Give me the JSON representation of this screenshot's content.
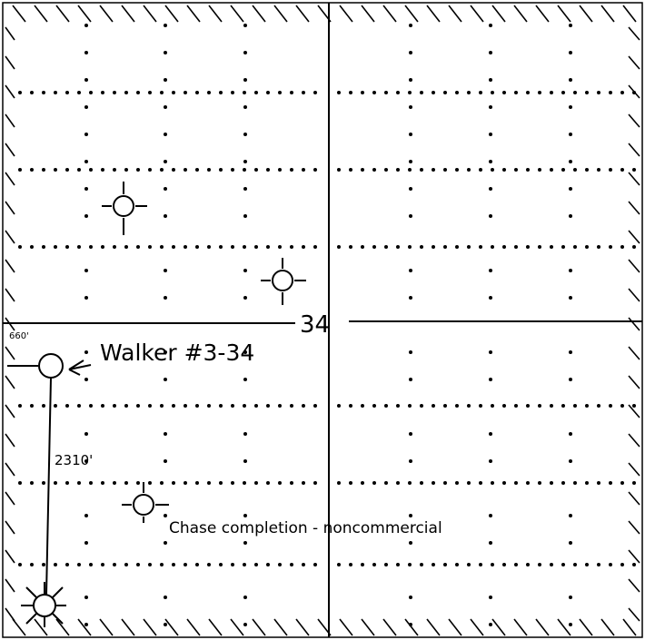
{
  "section": {
    "number": "34"
  },
  "well": {
    "name": "Walker #3-34",
    "offset_west": "660'",
    "offset_south": "2310'"
  },
  "annotations": {
    "completion_note": "Chase completion - noncommercial"
  },
  "symbols": {
    "proposed_well": "open-circle-icon",
    "dry_hole": "circle-crosshair-icon",
    "abandoned_well": "star-burst-icon"
  }
}
